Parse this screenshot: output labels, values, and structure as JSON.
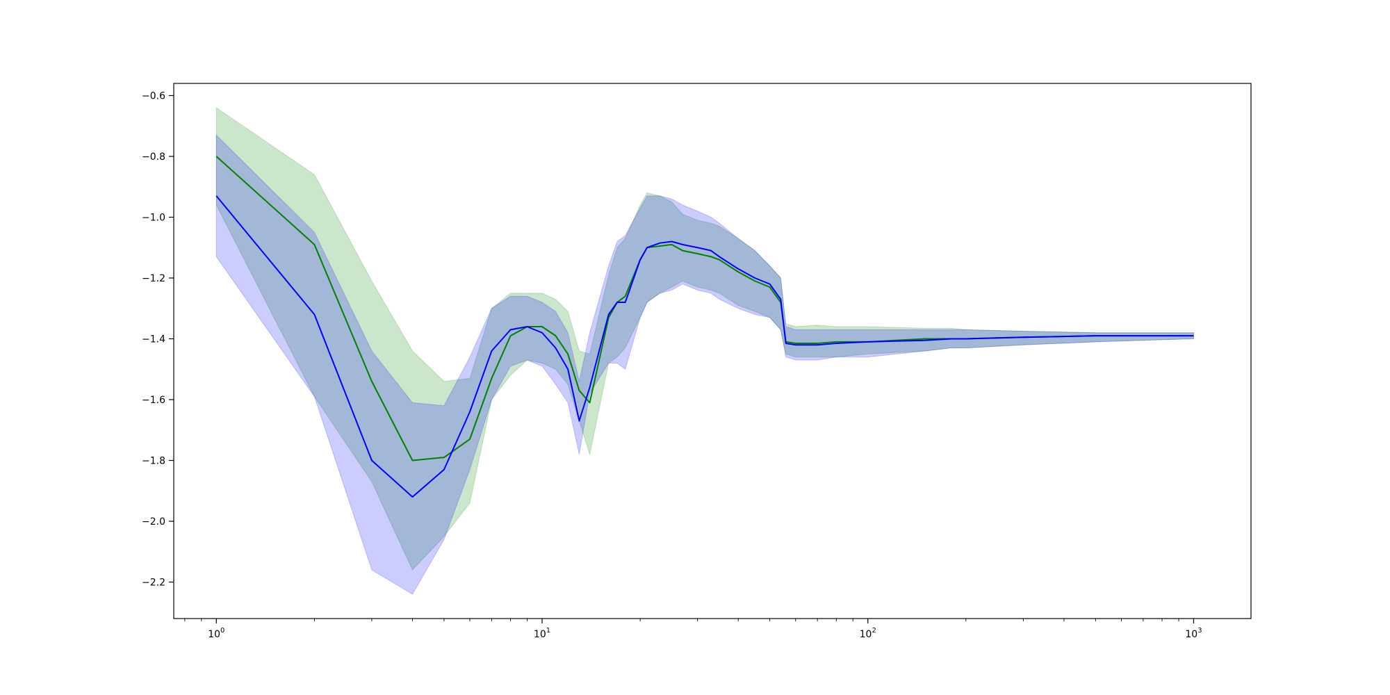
{
  "chart_data": {
    "type": "line",
    "xscale": "log",
    "xlim": [
      0.74,
      1500
    ],
    "ylim": [
      -2.32,
      -0.56
    ],
    "x_ticks": [
      {
        "value": 1,
        "base": "10",
        "exp": "0"
      },
      {
        "value": 10,
        "base": "10",
        "exp": "1"
      },
      {
        "value": 100,
        "base": "10",
        "exp": "2"
      },
      {
        "value": 1000,
        "base": "10",
        "exp": "3"
      }
    ],
    "y_ticks": [
      {
        "value": -0.6,
        "label": "−0.6"
      },
      {
        "value": -0.8,
        "label": "−0.8"
      },
      {
        "value": -1.0,
        "label": "−1.0"
      },
      {
        "value": -1.2,
        "label": "−1.2"
      },
      {
        "value": -1.4,
        "label": "−1.4"
      },
      {
        "value": -1.6,
        "label": "−1.6"
      },
      {
        "value": -1.8,
        "label": "−1.8"
      },
      {
        "value": -2.0,
        "label": "−2.0"
      },
      {
        "value": -2.2,
        "label": "−2.2"
      }
    ],
    "grid": false,
    "legend": "none",
    "series": [
      {
        "color": "#008000",
        "band_color": "#008000",
        "band_opacity": 0.2,
        "x": [
          1,
          2,
          3,
          4,
          5,
          6,
          7,
          8,
          9,
          10,
          11,
          12,
          13,
          14,
          16,
          17,
          18,
          20,
          21,
          23,
          25,
          27,
          30,
          33,
          35,
          40,
          45,
          50,
          54,
          56,
          60,
          70,
          80,
          100,
          150,
          180,
          200,
          300,
          500,
          1000
        ],
        "y": [
          -0.8,
          -1.09,
          -1.54,
          -1.8,
          -1.79,
          -1.73,
          -1.53,
          -1.39,
          -1.36,
          -1.36,
          -1.39,
          -1.45,
          -1.57,
          -1.61,
          -1.33,
          -1.28,
          -1.26,
          -1.14,
          -1.1,
          -1.095,
          -1.09,
          -1.11,
          -1.12,
          -1.13,
          -1.14,
          -1.18,
          -1.21,
          -1.23,
          -1.28,
          -1.41,
          -1.415,
          -1.415,
          -1.41,
          -1.41,
          -1.4,
          -1.4,
          -1.4,
          -1.395,
          -1.39,
          -1.39
        ],
        "lower": [
          -0.96,
          -1.59,
          -1.87,
          -2.16,
          -2.05,
          -1.94,
          -1.6,
          -1.52,
          -1.47,
          -1.48,
          -1.5,
          -1.55,
          -1.67,
          -1.78,
          -1.48,
          -1.46,
          -1.43,
          -1.33,
          -1.28,
          -1.25,
          -1.23,
          -1.21,
          -1.23,
          -1.24,
          -1.25,
          -1.29,
          -1.31,
          -1.33,
          -1.37,
          -1.45,
          -1.46,
          -1.46,
          -1.46,
          -1.45,
          -1.44,
          -1.43,
          -1.43,
          -1.42,
          -1.41,
          -1.4
        ],
        "upper": [
          -0.64,
          -0.86,
          -1.21,
          -1.44,
          -1.54,
          -1.53,
          -1.3,
          -1.25,
          -1.25,
          -1.25,
          -1.27,
          -1.31,
          -1.44,
          -1.45,
          -1.19,
          -1.1,
          -1.07,
          -0.96,
          -0.92,
          -0.93,
          -0.95,
          -0.99,
          -1.01,
          -1.02,
          -1.03,
          -1.07,
          -1.11,
          -1.16,
          -1.2,
          -1.35,
          -1.36,
          -1.355,
          -1.36,
          -1.36,
          -1.365,
          -1.365,
          -1.37,
          -1.375,
          -1.38,
          -1.38
        ]
      },
      {
        "color": "#0000ff",
        "band_color": "#0000ff",
        "band_opacity": 0.2,
        "x": [
          1,
          2,
          3,
          4,
          5,
          6,
          7,
          8,
          9,
          10,
          11,
          12,
          13,
          14,
          16,
          17,
          18,
          20,
          21,
          23,
          25,
          27,
          30,
          33,
          35,
          40,
          45,
          50,
          54,
          56,
          60,
          70,
          80,
          100,
          150,
          180,
          200,
          300,
          500,
          1000
        ],
        "y": [
          -0.93,
          -1.32,
          -1.8,
          -1.92,
          -1.83,
          -1.64,
          -1.44,
          -1.37,
          -1.36,
          -1.38,
          -1.43,
          -1.5,
          -1.67,
          -1.56,
          -1.32,
          -1.28,
          -1.28,
          -1.14,
          -1.1,
          -1.085,
          -1.08,
          -1.09,
          -1.1,
          -1.11,
          -1.13,
          -1.17,
          -1.2,
          -1.22,
          -1.27,
          -1.415,
          -1.42,
          -1.42,
          -1.415,
          -1.41,
          -1.405,
          -1.4,
          -1.4,
          -1.395,
          -1.39,
          -1.39
        ],
        "lower": [
          -1.13,
          -1.59,
          -2.16,
          -2.24,
          -2.06,
          -1.83,
          -1.6,
          -1.49,
          -1.47,
          -1.49,
          -1.55,
          -1.61,
          -1.78,
          -1.58,
          -1.48,
          -1.48,
          -1.5,
          -1.33,
          -1.28,
          -1.25,
          -1.24,
          -1.22,
          -1.24,
          -1.25,
          -1.27,
          -1.3,
          -1.32,
          -1.33,
          -1.37,
          -1.46,
          -1.47,
          -1.47,
          -1.46,
          -1.46,
          -1.44,
          -1.43,
          -1.43,
          -1.42,
          -1.41,
          -1.4
        ],
        "upper": [
          -0.73,
          -1.05,
          -1.44,
          -1.61,
          -1.62,
          -1.46,
          -1.3,
          -1.26,
          -1.26,
          -1.28,
          -1.31,
          -1.38,
          -1.54,
          -1.38,
          -1.16,
          -1.08,
          -1.06,
          -0.97,
          -0.93,
          -0.93,
          -0.94,
          -0.96,
          -0.98,
          -1.0,
          -1.02,
          -1.07,
          -1.11,
          -1.16,
          -1.2,
          -1.36,
          -1.37,
          -1.37,
          -1.37,
          -1.37,
          -1.37,
          -1.37,
          -1.37,
          -1.375,
          -1.38,
          -1.38
        ]
      }
    ]
  }
}
